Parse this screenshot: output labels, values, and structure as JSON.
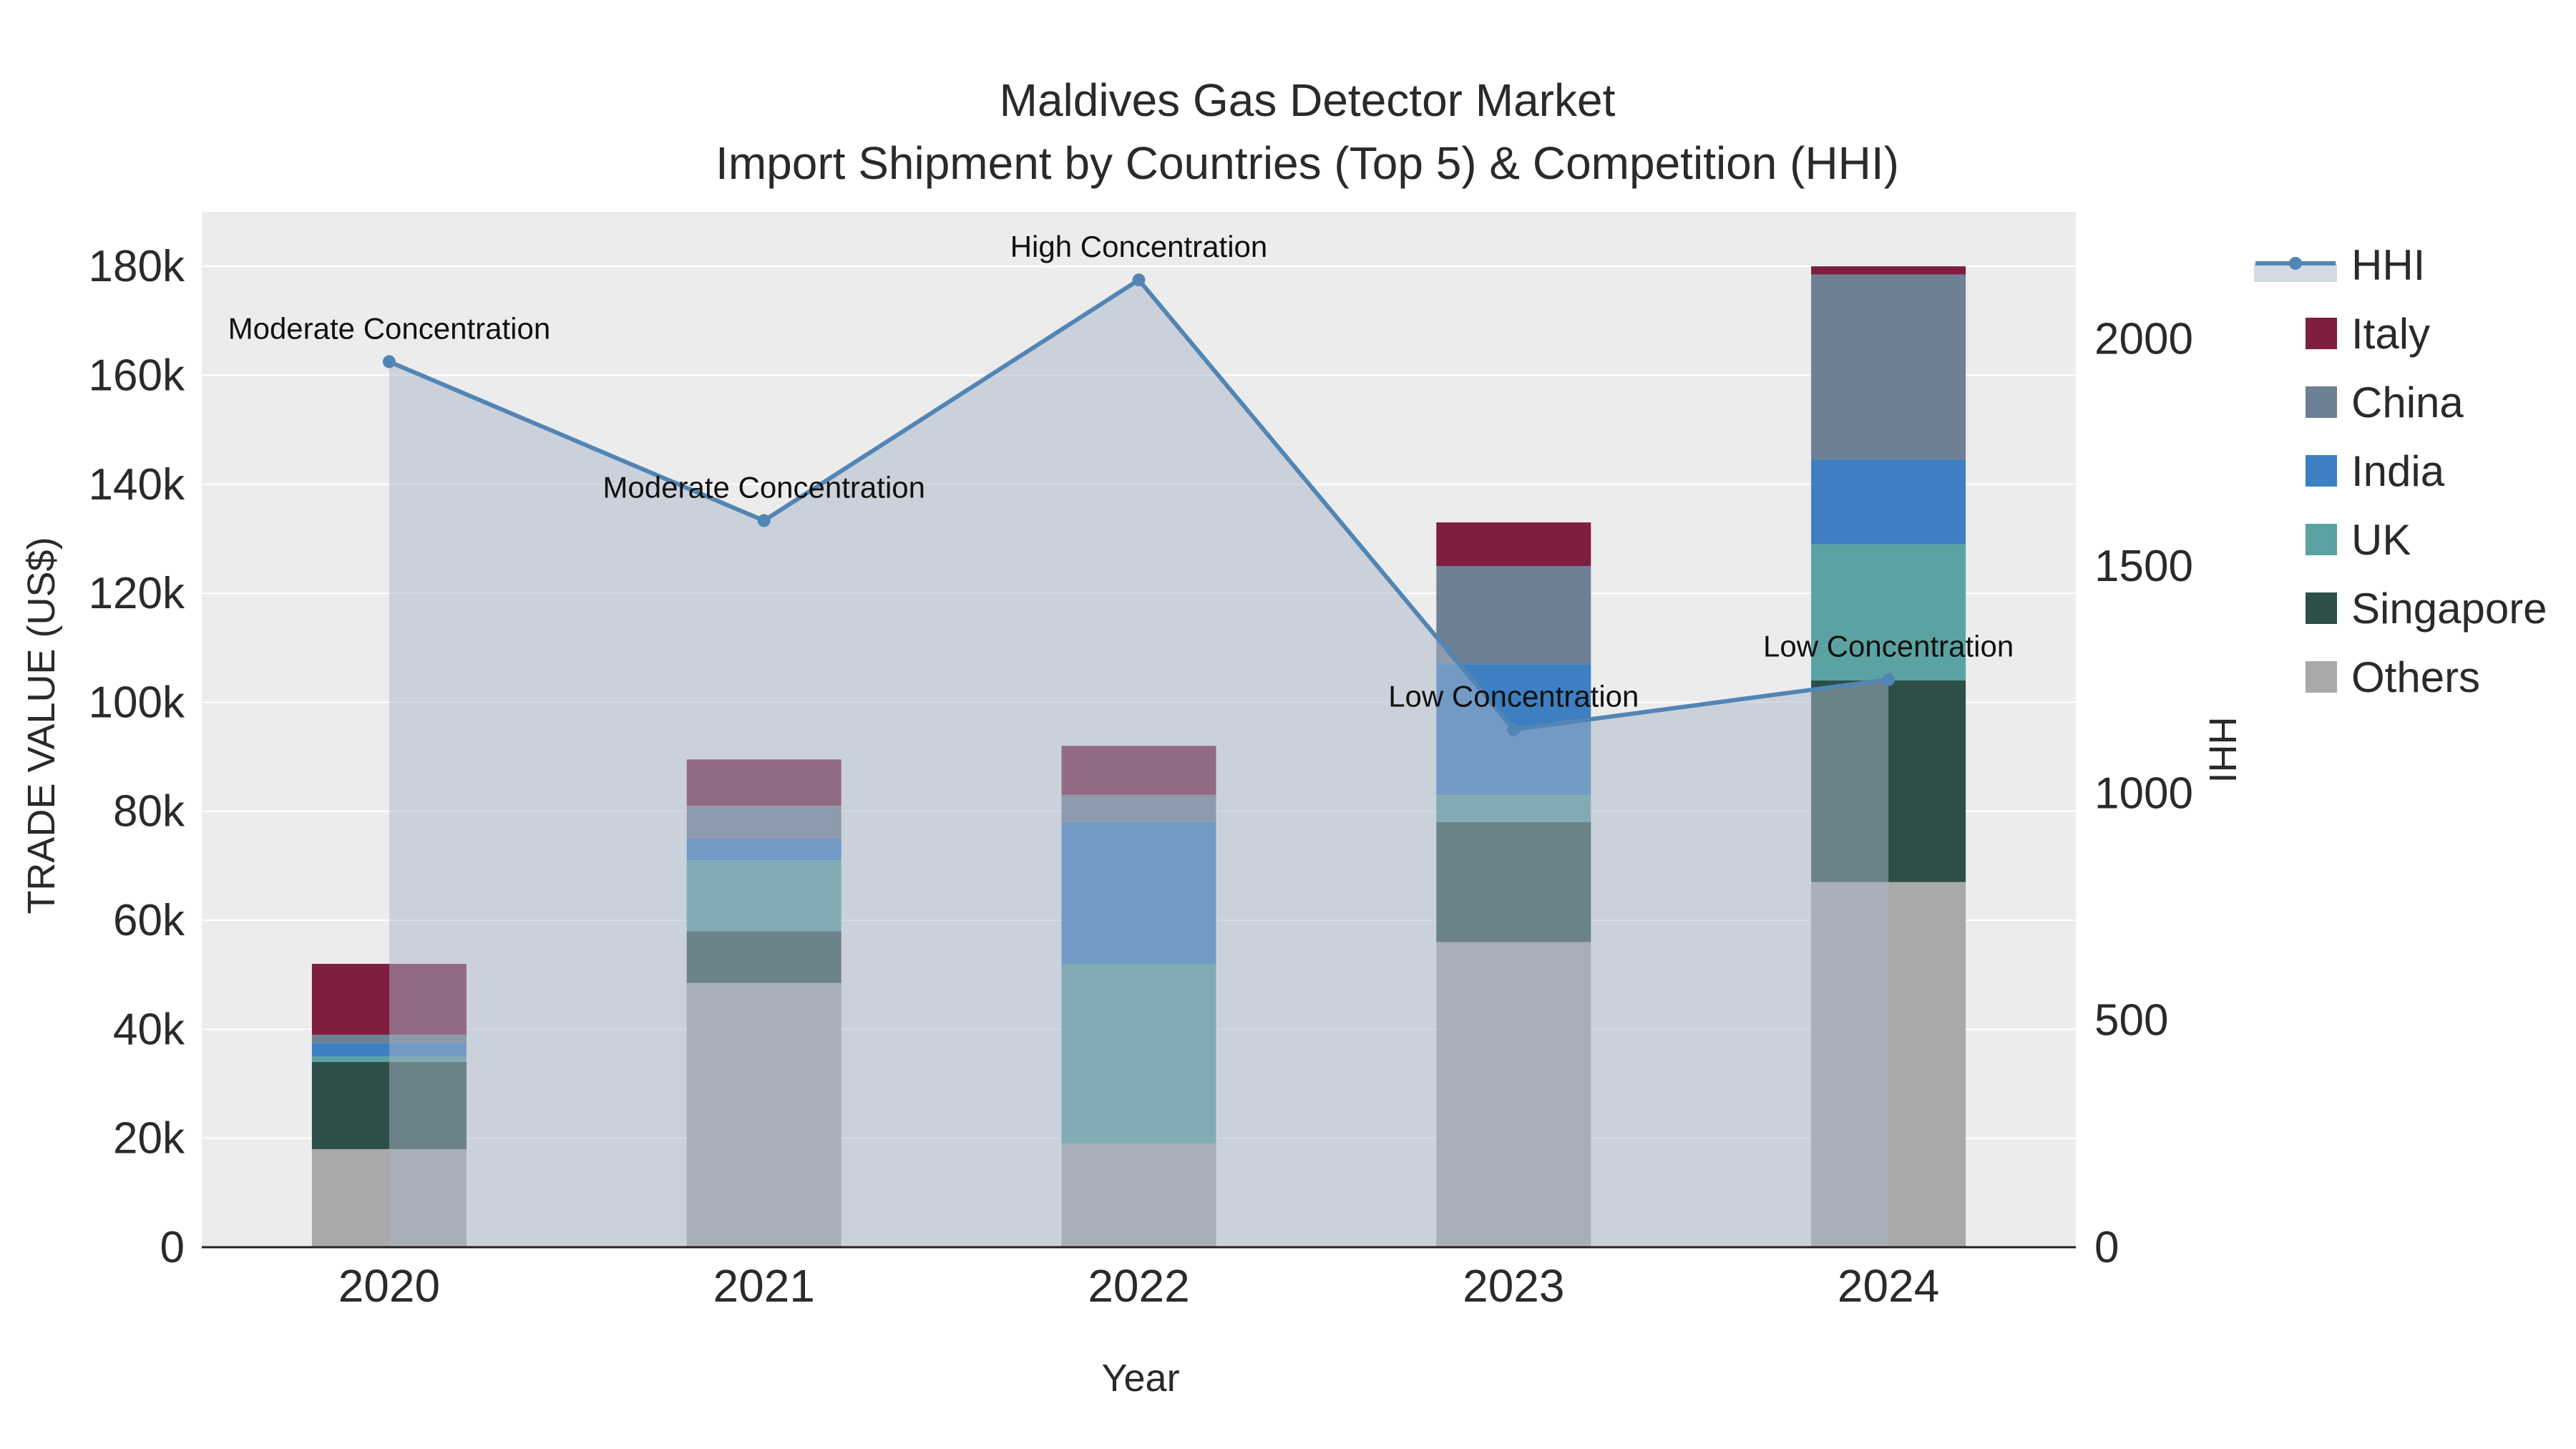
{
  "title": {
    "line1": "Maldives Gas Detector Market",
    "line2": "Import Shipment by Countries (Top 5) & Competition (HHI)"
  },
  "axes": {
    "left": {
      "title": "TRADE VALUE (US$)",
      "ticks": [
        {
          "value": 0,
          "label": "0"
        },
        {
          "value": 20000,
          "label": "20k"
        },
        {
          "value": 40000,
          "label": "40k"
        },
        {
          "value": 60000,
          "label": "60k"
        },
        {
          "value": 80000,
          "label": "80k"
        },
        {
          "value": 100000,
          "label": "100k"
        },
        {
          "value": 120000,
          "label": "120k"
        },
        {
          "value": 140000,
          "label": "140k"
        },
        {
          "value": 160000,
          "label": "160k"
        },
        {
          "value": 180000,
          "label": "180k"
        }
      ]
    },
    "right": {
      "title": "HHI",
      "ticks": [
        {
          "value": 0,
          "label": "0"
        },
        {
          "value": 500,
          "label": "500"
        },
        {
          "value": 1000,
          "label": "1000"
        },
        {
          "value": 1500,
          "label": "1500"
        },
        {
          "value": 2000,
          "label": "2000"
        }
      ]
    },
    "x": {
      "title": "Year"
    }
  },
  "legend": {
    "items": [
      {
        "label": "HHI",
        "type": "line",
        "color": "#5285b4"
      },
      {
        "label": "Italy",
        "type": "square",
        "color": "#7d1e3f"
      },
      {
        "label": "China",
        "type": "square",
        "color": "#6e8093"
      },
      {
        "label": "India",
        "type": "square",
        "color": "#3d7fc1"
      },
      {
        "label": "UK",
        "type": "square",
        "color": "#5ba3a3"
      },
      {
        "label": "Singapore",
        "type": "square",
        "color": "#2c4f4a"
      },
      {
        "label": "Others",
        "type": "square",
        "color": "#a9a9a9"
      }
    ]
  },
  "chart_data": {
    "type": "combo-stacked-bar-line",
    "categories": [
      "2020",
      "2021",
      "2022",
      "2023",
      "2024"
    ],
    "bar_value_unit": "US$",
    "stack_order_bottom_to_top": [
      "Others",
      "Singapore",
      "UK",
      "India",
      "China",
      "Italy"
    ],
    "series": [
      {
        "name": "Others",
        "type": "bar",
        "color": "#a9a9a9",
        "values": [
          18000,
          48500,
          19000,
          56000,
          67000
        ]
      },
      {
        "name": "Singapore",
        "type": "bar",
        "color": "#2c4f4a",
        "values": [
          16000,
          9500,
          0,
          22000,
          37000
        ]
      },
      {
        "name": "UK",
        "type": "bar",
        "color": "#5ba3a3",
        "values": [
          1000,
          13000,
          33000,
          5000,
          25000
        ]
      },
      {
        "name": "India",
        "type": "bar",
        "color": "#3d7fc1",
        "values": [
          2500,
          4000,
          26000,
          24000,
          15500
        ]
      },
      {
        "name": "China",
        "type": "bar",
        "color": "#6e8093",
        "values": [
          1500,
          6000,
          5000,
          18000,
          34000
        ]
      },
      {
        "name": "Italy",
        "type": "bar",
        "color": "#7d1e3f",
        "values": [
          13000,
          8500,
          9000,
          8000,
          1500
        ]
      }
    ],
    "hhi": {
      "name": "HHI",
      "type": "line",
      "color": "#5285b4",
      "fill": "rgba(170,182,200,0.5)",
      "values": [
        1950,
        1600,
        2130,
        1140,
        1250
      ]
    },
    "annotations": [
      {
        "x": "2020",
        "text": "Moderate Concentration"
      },
      {
        "x": "2021",
        "text": "Moderate Concentration"
      },
      {
        "x": "2022",
        "text": "High Concentration"
      },
      {
        "x": "2023",
        "text": "Low Concentration"
      },
      {
        "x": "2024",
        "text": "Low Concentration"
      }
    ],
    "xlabel": "Year",
    "ylabel_left": "TRADE VALUE (US$)",
    "ylabel_right": "HHI",
    "ylim_left": [
      0,
      190000
    ],
    "ylim_right": [
      0,
      2280
    ],
    "plot_bg": "#ececec",
    "grid_color": "#ffffff",
    "axis_line_color": "#222222",
    "annotation_color": "#111111",
    "tick_color": "#2a2a2a",
    "grid_on": true,
    "legend_position": "right"
  }
}
